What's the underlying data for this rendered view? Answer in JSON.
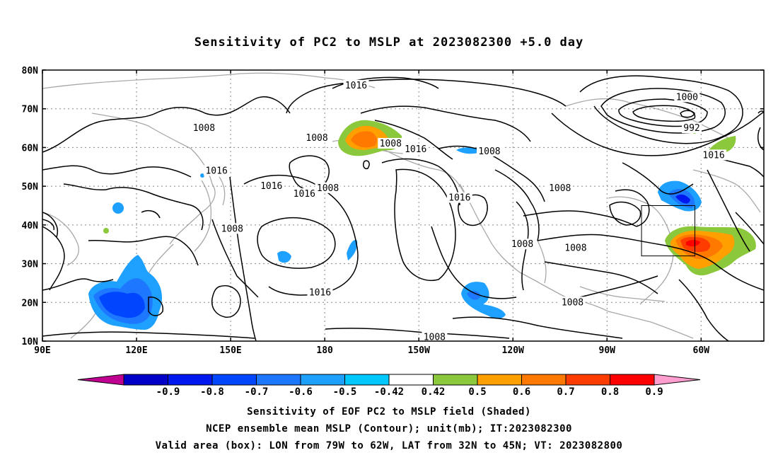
{
  "title": "Sensitivity of PC2 to MSLP at 2023082300 +5.0 day",
  "axes": {
    "lat_labels": [
      "80N",
      "70N",
      "60N",
      "50N",
      "40N",
      "30N",
      "20N",
      "10N"
    ],
    "lon_labels": [
      "90E",
      "120E",
      "150E",
      "180",
      "150W",
      "120W",
      "90W",
      "60W"
    ]
  },
  "contour_labels": [
    {
      "text": "1016",
      "lon": -170,
      "lat": 76
    },
    {
      "text": "1000",
      "lon": -64.5,
      "lat": 73
    },
    {
      "text": "1008",
      "lon": -218.5,
      "lat": 65
    },
    {
      "text": "992",
      "lon": -63,
      "lat": 65
    },
    {
      "text": "1008",
      "lon": -182.5,
      "lat": 62.5
    },
    {
      "text": "1008",
      "lon": -159,
      "lat": 61
    },
    {
      "text": "1016",
      "lon": -151,
      "lat": 59.5
    },
    {
      "text": "1008",
      "lon": -127.5,
      "lat": 59
    },
    {
      "text": "1016",
      "lon": -56,
      "lat": 58
    },
    {
      "text": "1016",
      "lon": -214.5,
      "lat": 54
    },
    {
      "text": "1016",
      "lon": -197,
      "lat": 50
    },
    {
      "text": "1008",
      "lon": -179,
      "lat": 49.5
    },
    {
      "text": "1008",
      "lon": -105,
      "lat": 49.5
    },
    {
      "text": "1016",
      "lon": -186.5,
      "lat": 48
    },
    {
      "text": "1016",
      "lon": -137,
      "lat": 47
    },
    {
      "text": "1008",
      "lon": -209.5,
      "lat": 39
    },
    {
      "text": "1008",
      "lon": -117,
      "lat": 35
    },
    {
      "text": "1008",
      "lon": -100,
      "lat": 34
    },
    {
      "text": "1016",
      "lon": -181.5,
      "lat": 22.5
    },
    {
      "text": "1008",
      "lon": -101,
      "lat": 20
    },
    {
      "text": "1008",
      "lon": -145,
      "lat": 11
    }
  ],
  "valid_box": {
    "lon_from": -79,
    "lon_to": -62,
    "lat_from": 32,
    "lat_to": 45
  },
  "colorbar": {
    "labels": [
      "-0.9",
      "-0.8",
      "-0.7",
      "-0.6",
      "-0.5",
      "-0.42",
      "0.42",
      "0.5",
      "0.6",
      "0.7",
      "0.8",
      "0.9"
    ],
    "colors": [
      "#c00090",
      "#0000c8",
      "#0018f0",
      "#0046ff",
      "#1e78ff",
      "#1ea0ff",
      "#00c8ff",
      "#ffffff",
      "#8cc83c",
      "#ffa000",
      "#ff7800",
      "#ff3c00",
      "#ff0000",
      "#ff9ecf"
    ]
  },
  "captions": [
    "Sensitivity of EOF PC2 to MSLP field (Shaded)",
    "NCEP ensemble mean MSLP (Contour); unit(mb); IT:2023082300",
    "Valid area (box): LON from 79W to 62W, LAT from 32N to 45N; VT: 2023082800"
  ]
}
